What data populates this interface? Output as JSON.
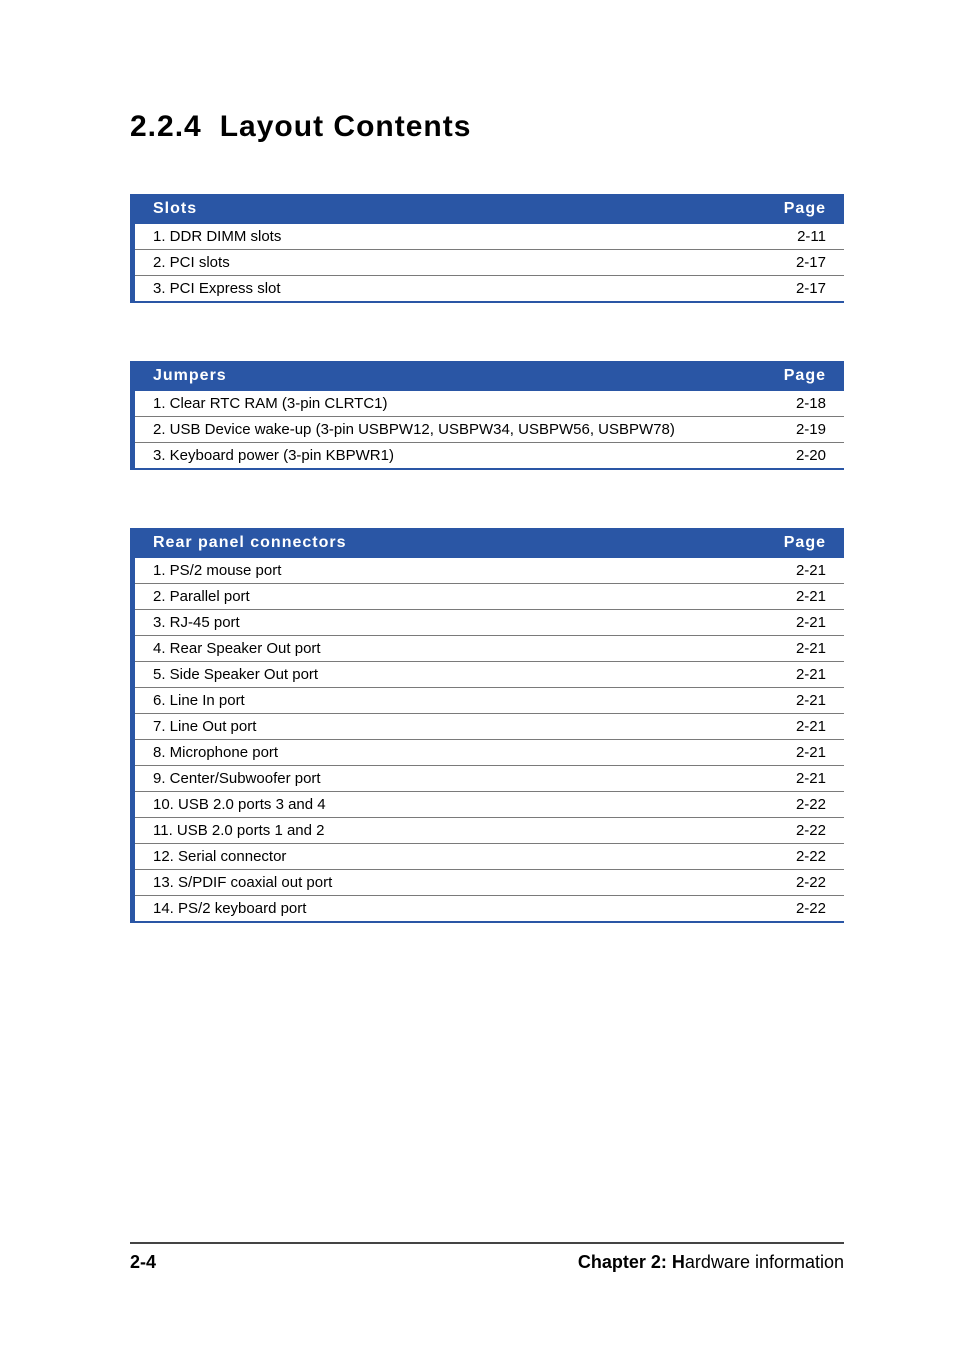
{
  "accent_color": "#2a56a5",
  "title": {
    "number": "2.2.4",
    "text": "Layout Contents"
  },
  "page_header_label": "Page",
  "tables": [
    {
      "header": "Slots",
      "rows": [
        {
          "label": "1. DDR DIMM slots",
          "page": "2-11"
        },
        {
          "label": "2. PCI slots",
          "page": "2-17"
        },
        {
          "label": "3. PCI Express slot",
          "page": "2-17"
        }
      ]
    },
    {
      "header": "Jumpers",
      "rows": [
        {
          "label": "1. Clear RTC RAM (3-pin CLRTC1)",
          "page": "2-18"
        },
        {
          "label": "2. USB Device wake-up (3-pin USBPW12, USBPW34, USBPW56, USBPW78)",
          "page": "2-19"
        },
        {
          "label": "3. Keyboard power (3-pin KBPWR1)",
          "page": "2-20"
        }
      ]
    },
    {
      "header": "Rear panel connectors",
      "rows": [
        {
          "label": "1. PS/2 mouse port",
          "page": "2-21"
        },
        {
          "label": "2. Parallel port",
          "page": "2-21"
        },
        {
          "label": "3. RJ-45 port",
          "page": "2-21"
        },
        {
          "label": "4. Rear Speaker Out port",
          "page": "2-21"
        },
        {
          "label": "5. Side Speaker Out port",
          "page": "2-21"
        },
        {
          "label": "6. Line In port",
          "page": "2-21"
        },
        {
          "label": "7. Line Out port",
          "page": "2-21"
        },
        {
          "label": "8. Microphone port",
          "page": "2-21"
        },
        {
          "label": "9. Center/Subwoofer port",
          "page": "2-21"
        },
        {
          "label": "10. USB 2.0 ports 3 and 4",
          "page": "2-22"
        },
        {
          "label": "11. USB 2.0 ports 1 and 2",
          "page": "2-22"
        },
        {
          "label": "12. Serial connector",
          "page": "2-22"
        },
        {
          "label": "13. S/PDIF coaxial out port",
          "page": "2-22"
        },
        {
          "label": "14. PS/2 keyboard port",
          "page": "2-22"
        }
      ]
    }
  ],
  "footer": {
    "page_number": "2-4",
    "chapter_prefix": "Chapter 2: H",
    "chapter_rest": "ardware information"
  }
}
